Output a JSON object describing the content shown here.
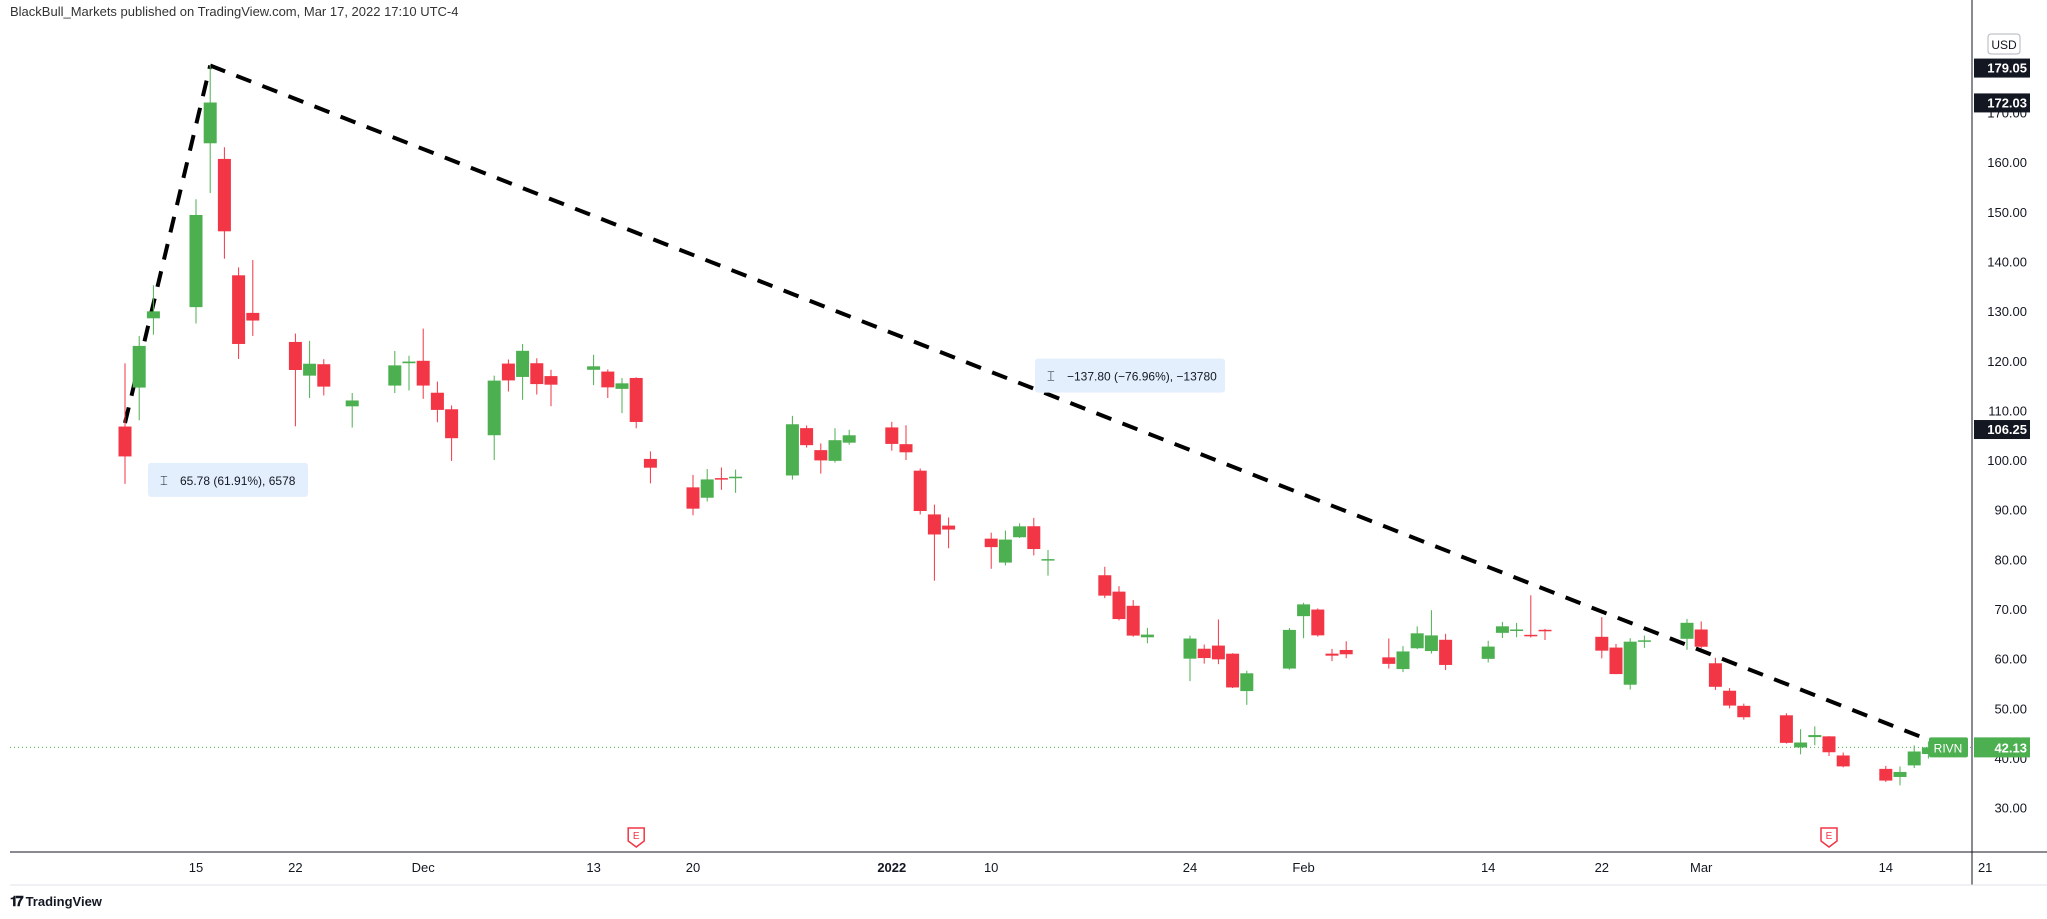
{
  "header": {
    "published": "BlackBull_Markets published on TradingView.com, Mar 17, 2022 17:10 UTC-4"
  },
  "footer": {
    "brand": "TradingView",
    "logo": "tradingview-logo"
  },
  "currency": "USD",
  "colors": {
    "up": "#4caf50",
    "down": "#f23645",
    "trend": "#000000",
    "grid": "#e0e3eb",
    "dotted": "#4caf50",
    "label_bg": "#131722",
    "note_bg": "#e3effd"
  },
  "chart_data": {
    "type": "candlestick",
    "symbol": "RIVN",
    "last_price": "42.13",
    "price_labels": [
      "179.05",
      "172.03",
      "106.25"
    ],
    "y_ticks": [
      "30.00",
      "40.00",
      "50.00",
      "60.00",
      "70.00",
      "80.00",
      "90.00",
      "100.00",
      "110.00",
      "120.00",
      "130.00",
      "140.00",
      "150.00",
      "160.00",
      "170.00"
    ],
    "ylim": [
      20,
      186
    ],
    "x_ticks": [
      {
        "label": "15",
        "bold": false,
        "date": "2021-11-15"
      },
      {
        "label": "22",
        "bold": false,
        "date": "2021-11-22"
      },
      {
        "label": "Dec",
        "bold": false,
        "date": "2021-12-01"
      },
      {
        "label": "13",
        "bold": false,
        "date": "2021-12-13"
      },
      {
        "label": "20",
        "bold": false,
        "date": "2021-12-20"
      },
      {
        "label": "2022",
        "bold": true,
        "date": "2022-01-03"
      },
      {
        "label": "10",
        "bold": false,
        "date": "2022-01-10"
      },
      {
        "label": "24",
        "bold": false,
        "date": "2022-01-24"
      },
      {
        "label": "Feb",
        "bold": false,
        "date": "2022-02-01"
      },
      {
        "label": "14",
        "bold": false,
        "date": "2022-02-14"
      },
      {
        "label": "22",
        "bold": false,
        "date": "2022-02-22"
      },
      {
        "label": "Mar",
        "bold": false,
        "date": "2022-03-01"
      },
      {
        "label": "14",
        "bold": false,
        "date": "2022-03-14"
      },
      {
        "label": "21",
        "bold": false,
        "date": "2022-03-21"
      }
    ],
    "earnings_markers": [
      "E",
      "E"
    ],
    "annotations": [
      {
        "text": "65.78 (61.91%), 6578"
      },
      {
        "text": "−137.80 (−76.96%), −13780"
      }
    ],
    "candles": [
      {
        "date": "2021-11-10",
        "o": 106.75,
        "h": 119.46,
        "l": 95.2,
        "c": 100.73
      },
      {
        "date": "2021-11-11",
        "o": 114.6,
        "h": 125.0,
        "l": 108.01,
        "c": 122.99
      },
      {
        "date": "2021-11-12",
        "o": 128.55,
        "h": 135.2,
        "l": 125.25,
        "c": 129.95
      },
      {
        "date": "2021-11-15",
        "o": 130.8,
        "h": 152.53,
        "l": 127.51,
        "c": 149.36
      },
      {
        "date": "2021-11-16",
        "o": 163.8,
        "h": 179.47,
        "l": 153.78,
        "c": 172.01
      },
      {
        "date": "2021-11-17",
        "o": 160.65,
        "h": 163.0,
        "l": 140.55,
        "c": 146.07
      },
      {
        "date": "2021-11-18",
        "o": 137.21,
        "h": 138.8,
        "l": 120.36,
        "c": 123.38
      },
      {
        "date": "2021-11-19",
        "o": 129.64,
        "h": 140.28,
        "l": 125.0,
        "c": 128.1
      },
      {
        "date": "2021-11-22",
        "o": 123.79,
        "h": 125.47,
        "l": 106.8,
        "c": 118.14
      },
      {
        "date": "2021-11-23",
        "o": 117.0,
        "h": 124.0,
        "l": 112.5,
        "c": 119.4
      },
      {
        "date": "2021-11-24",
        "o": 119.3,
        "h": 120.31,
        "l": 113.01,
        "c": 114.79
      },
      {
        "date": "2021-11-26",
        "o": 110.82,
        "h": 113.5,
        "l": 106.54,
        "c": 112.0
      },
      {
        "date": "2021-11-29",
        "o": 115.0,
        "h": 121.97,
        "l": 113.5,
        "c": 119.07
      },
      {
        "date": "2021-11-30",
        "o": 119.5,
        "h": 121.0,
        "l": 114.0,
        "c": 119.84
      },
      {
        "date": "2021-12-01",
        "o": 119.99,
        "h": 126.48,
        "l": 112.33,
        "c": 115.0
      },
      {
        "date": "2021-12-02",
        "o": 113.56,
        "h": 115.8,
        "l": 107.61,
        "c": 110.1
      },
      {
        "date": "2021-12-03",
        "o": 110.23,
        "h": 111.0,
        "l": 99.82,
        "c": 104.4
      },
      {
        "date": "2021-12-06",
        "o": 105.0,
        "h": 117.0,
        "l": 100.0,
        "c": 116.0
      },
      {
        "date": "2021-12-07",
        "o": 119.43,
        "h": 120.26,
        "l": 113.81,
        "c": 116.04
      },
      {
        "date": "2021-12-08",
        "o": 116.74,
        "h": 123.38,
        "l": 112.14,
        "c": 122.0
      },
      {
        "date": "2021-12-09",
        "o": 119.5,
        "h": 120.5,
        "l": 113.2,
        "c": 115.3
      },
      {
        "date": "2021-12-10",
        "o": 116.91,
        "h": 118.19,
        "l": 110.83,
        "c": 115.18
      },
      {
        "date": "2021-12-13",
        "o": 118.18,
        "h": 121.21,
        "l": 115.09,
        "c": 118.88
      },
      {
        "date": "2021-12-14",
        "o": 117.82,
        "h": 118.26,
        "l": 112.5,
        "c": 114.64
      },
      {
        "date": "2021-12-15",
        "o": 114.34,
        "h": 116.51,
        "l": 109.45,
        "c": 115.45
      },
      {
        "date": "2021-12-16",
        "o": 116.53,
        "h": 116.67,
        "l": 106.39,
        "c": 107.67
      },
      {
        "date": "2021-12-17",
        "o": 100.23,
        "h": 101.74,
        "l": 95.3,
        "c": 98.46
      },
      {
        "date": "2021-12-20",
        "o": 94.5,
        "h": 97.02,
        "l": 88.87,
        "c": 90.21
      },
      {
        "date": "2021-12-21",
        "o": 92.41,
        "h": 98.2,
        "l": 91.65,
        "c": 96.1
      },
      {
        "date": "2021-12-22",
        "o": 96.36,
        "h": 98.5,
        "l": 94.0,
        "c": 96.35
      },
      {
        "date": "2021-12-23",
        "o": 96.61,
        "h": 98.08,
        "l": 93.4,
        "c": 96.64
      },
      {
        "date": "2021-12-27",
        "o": 96.89,
        "h": 108.9,
        "l": 96.06,
        "c": 107.21
      },
      {
        "date": "2021-12-28",
        "o": 106.43,
        "h": 106.96,
        "l": 102.51,
        "c": 103.0
      },
      {
        "date": "2021-12-29",
        "o": 102.0,
        "h": 103.35,
        "l": 97.26,
        "c": 99.93
      },
      {
        "date": "2021-12-30",
        "o": 99.84,
        "h": 106.4,
        "l": 99.5,
        "c": 104.0
      },
      {
        "date": "2021-12-31",
        "o": 103.5,
        "h": 106.09,
        "l": 103.08,
        "c": 104.99
      },
      {
        "date": "2022-01-03",
        "o": 106.57,
        "h": 107.69,
        "l": 101.89,
        "c": 103.25
      },
      {
        "date": "2022-01-04",
        "o": 103.2,
        "h": 107.0,
        "l": 100.0,
        "c": 101.56
      },
      {
        "date": "2022-01-05",
        "o": 97.86,
        "h": 98.29,
        "l": 89.05,
        "c": 89.74
      },
      {
        "date": "2022-01-06",
        "o": 89.05,
        "h": 91.02,
        "l": 75.7,
        "c": 85.01
      },
      {
        "date": "2022-01-07",
        "o": 86.8,
        "h": 88.43,
        "l": 82.24,
        "c": 86.0
      },
      {
        "date": "2022-01-10",
        "o": 84.17,
        "h": 85.38,
        "l": 78.1,
        "c": 82.46
      },
      {
        "date": "2022-01-11",
        "o": 79.35,
        "h": 85.8,
        "l": 78.75,
        "c": 83.98
      },
      {
        "date": "2022-01-12",
        "o": 84.45,
        "h": 87.25,
        "l": 84.31,
        "c": 86.65
      },
      {
        "date": "2022-01-13",
        "o": 86.67,
        "h": 88.35,
        "l": 80.8,
        "c": 82.08
      },
      {
        "date": "2022-01-14",
        "o": 79.88,
        "h": 81.88,
        "l": 76.72,
        "c": 80.05
      },
      {
        "date": "2022-01-18",
        "o": 76.8,
        "h": 78.5,
        "l": 72.2,
        "c": 72.69
      },
      {
        "date": "2022-01-19",
        "o": 73.5,
        "h": 74.6,
        "l": 67.7,
        "c": 67.97
      },
      {
        "date": "2022-01-20",
        "o": 70.65,
        "h": 71.8,
        "l": 64.42,
        "c": 64.64
      },
      {
        "date": "2022-01-21",
        "o": 64.3,
        "h": 66.2,
        "l": 63.1,
        "c": 64.84
      },
      {
        "date": "2022-01-24",
        "o": 60.0,
        "h": 64.64,
        "l": 55.48,
        "c": 64.05
      },
      {
        "date": "2022-01-25",
        "o": 62.0,
        "h": 62.85,
        "l": 59.0,
        "c": 60.12
      },
      {
        "date": "2022-01-26",
        "o": 62.63,
        "h": 67.89,
        "l": 58.89,
        "c": 59.86
      },
      {
        "date": "2022-01-27",
        "o": 61.0,
        "h": 61.1,
        "l": 54.09,
        "c": 54.2
      },
      {
        "date": "2022-01-28",
        "o": 53.47,
        "h": 57.57,
        "l": 50.7,
        "c": 57.05
      },
      {
        "date": "2022-01-31",
        "o": 58.0,
        "h": 66.17,
        "l": 57.78,
        "c": 65.79
      },
      {
        "date": "2022-02-01",
        "o": 68.56,
        "h": 71.26,
        "l": 64.11,
        "c": 70.93
      },
      {
        "date": "2022-02-02",
        "o": 69.89,
        "h": 70.12,
        "l": 64.43,
        "c": 64.69
      },
      {
        "date": "2022-02-03",
        "o": 61.01,
        "h": 61.98,
        "l": 59.5,
        "c": 60.6
      },
      {
        "date": "2022-02-04",
        "o": 61.75,
        "h": 63.5,
        "l": 60.09,
        "c": 60.88
      },
      {
        "date": "2022-02-07",
        "o": 60.26,
        "h": 64.07,
        "l": 58.0,
        "c": 58.95
      },
      {
        "date": "2022-02-08",
        "o": 57.9,
        "h": 62.52,
        "l": 57.28,
        "c": 61.45
      },
      {
        "date": "2022-02-09",
        "o": 62.09,
        "h": 66.5,
        "l": 61.93,
        "c": 65.1
      },
      {
        "date": "2022-02-10",
        "o": 61.53,
        "h": 69.76,
        "l": 61.03,
        "c": 64.68
      },
      {
        "date": "2022-02-11",
        "o": 63.8,
        "h": 65.0,
        "l": 57.7,
        "c": 58.73
      },
      {
        "date": "2022-02-14",
        "o": 59.96,
        "h": 63.6,
        "l": 59.23,
        "c": 62.43
      },
      {
        "date": "2022-02-15",
        "o": 65.2,
        "h": 67.4,
        "l": 64.15,
        "c": 66.51
      },
      {
        "date": "2022-02-16",
        "o": 65.7,
        "h": 67.2,
        "l": 64.3,
        "c": 65.87
      },
      {
        "date": "2022-02-17",
        "o": 64.8,
        "h": 72.76,
        "l": 64.26,
        "c": 64.65
      },
      {
        "date": "2022-02-18",
        "o": 65.81,
        "h": 66.0,
        "l": 63.75,
        "c": 65.58
      },
      {
        "date": "2022-02-22",
        "o": 64.4,
        "h": 68.36,
        "l": 60.06,
        "c": 61.61
      },
      {
        "date": "2022-02-23",
        "o": 62.23,
        "h": 62.97,
        "l": 56.88,
        "c": 56.89
      },
      {
        "date": "2022-02-24",
        "o": 54.75,
        "h": 64.12,
        "l": 53.78,
        "c": 63.42
      },
      {
        "date": "2022-02-25",
        "o": 63.5,
        "h": 64.65,
        "l": 62.17,
        "c": 63.69
      },
      {
        "date": "2022-02-28",
        "o": 64.0,
        "h": 68.0,
        "l": 61.78,
        "c": 67.22
      },
      {
        "date": "2022-03-01",
        "o": 65.87,
        "h": 67.5,
        "l": 62.1,
        "c": 62.4
      },
      {
        "date": "2022-03-02",
        "o": 59.07,
        "h": 60.18,
        "l": 53.7,
        "c": 54.33
      },
      {
        "date": "2022-03-03",
        "o": 53.54,
        "h": 54.06,
        "l": 50.0,
        "c": 50.55
      },
      {
        "date": "2022-03-04",
        "o": 50.5,
        "h": 50.94,
        "l": 47.71,
        "c": 48.2
      },
      {
        "date": "2022-03-07",
        "o": 48.59,
        "h": 49.0,
        "l": 42.9,
        "c": 43.04
      },
      {
        "date": "2022-03-08",
        "o": 42.12,
        "h": 45.79,
        "l": 40.73,
        "c": 43.11
      },
      {
        "date": "2022-03-09",
        "o": 44.2,
        "h": 46.36,
        "l": 42.56,
        "c": 44.61
      },
      {
        "date": "2022-03-10",
        "o": 44.35,
        "h": 44.4,
        "l": 40.4,
        "c": 41.15
      },
      {
        "date": "2022-03-11",
        "o": 40.5,
        "h": 41.09,
        "l": 38.11,
        "c": 38.3
      },
      {
        "date": "2022-03-14",
        "o": 37.8,
        "h": 38.4,
        "l": 35.17,
        "c": 35.44
      },
      {
        "date": "2022-03-15",
        "o": 36.17,
        "h": 38.28,
        "l": 34.47,
        "c": 37.18
      },
      {
        "date": "2022-03-16",
        "o": 38.5,
        "h": 42.51,
        "l": 37.98,
        "c": 41.3
      },
      {
        "date": "2022-03-17",
        "o": 40.8,
        "h": 43.35,
        "l": 39.88,
        "c": 42.13
      }
    ]
  }
}
